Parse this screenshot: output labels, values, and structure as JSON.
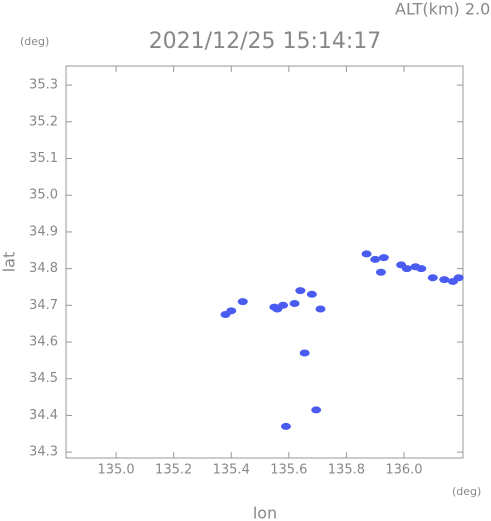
{
  "chart_data": {
    "type": "scatter",
    "title": "2021/12/25 15:14:17",
    "altitude_label": "ALT(km)  2.0",
    "y_unit": "(deg)",
    "x_unit": "(deg)",
    "xlabel": "lon",
    "ylabel": "lat",
    "color": "#4a5cf0",
    "xlim": [
      134.826,
      136.205
    ],
    "ylim": [
      34.284,
      35.352
    ],
    "xticks": [
      {
        "value": 135.0,
        "label": "135.0"
      },
      135.2,
      135.4,
      135.6,
      135.8,
      {
        "value": 136.0,
        "label": "136.0"
      }
    ],
    "yticks": [
      34.3,
      34.4,
      34.5,
      34.6,
      34.7,
      34.8,
      34.9,
      {
        "value": 35.0,
        "label": "35.0"
      },
      35.1,
      35.2,
      35.3
    ],
    "x": [
      135.38,
      135.4,
      135.44,
      135.55,
      135.56,
      135.58,
      135.62,
      135.64,
      135.68,
      135.71,
      135.655,
      135.695,
      135.59,
      135.87,
      135.9,
      135.93,
      135.92,
      135.99,
      136.01,
      136.04,
      136.06,
      136.1,
      136.14,
      136.17,
      136.19
    ],
    "y": [
      34.675,
      34.685,
      34.71,
      34.695,
      34.69,
      34.7,
      34.705,
      34.74,
      34.73,
      34.69,
      34.57,
      34.415,
      34.37,
      34.84,
      34.825,
      34.83,
      34.79,
      34.81,
      34.8,
      34.805,
      34.8,
      34.775,
      34.77,
      34.765,
      34.775
    ]
  }
}
